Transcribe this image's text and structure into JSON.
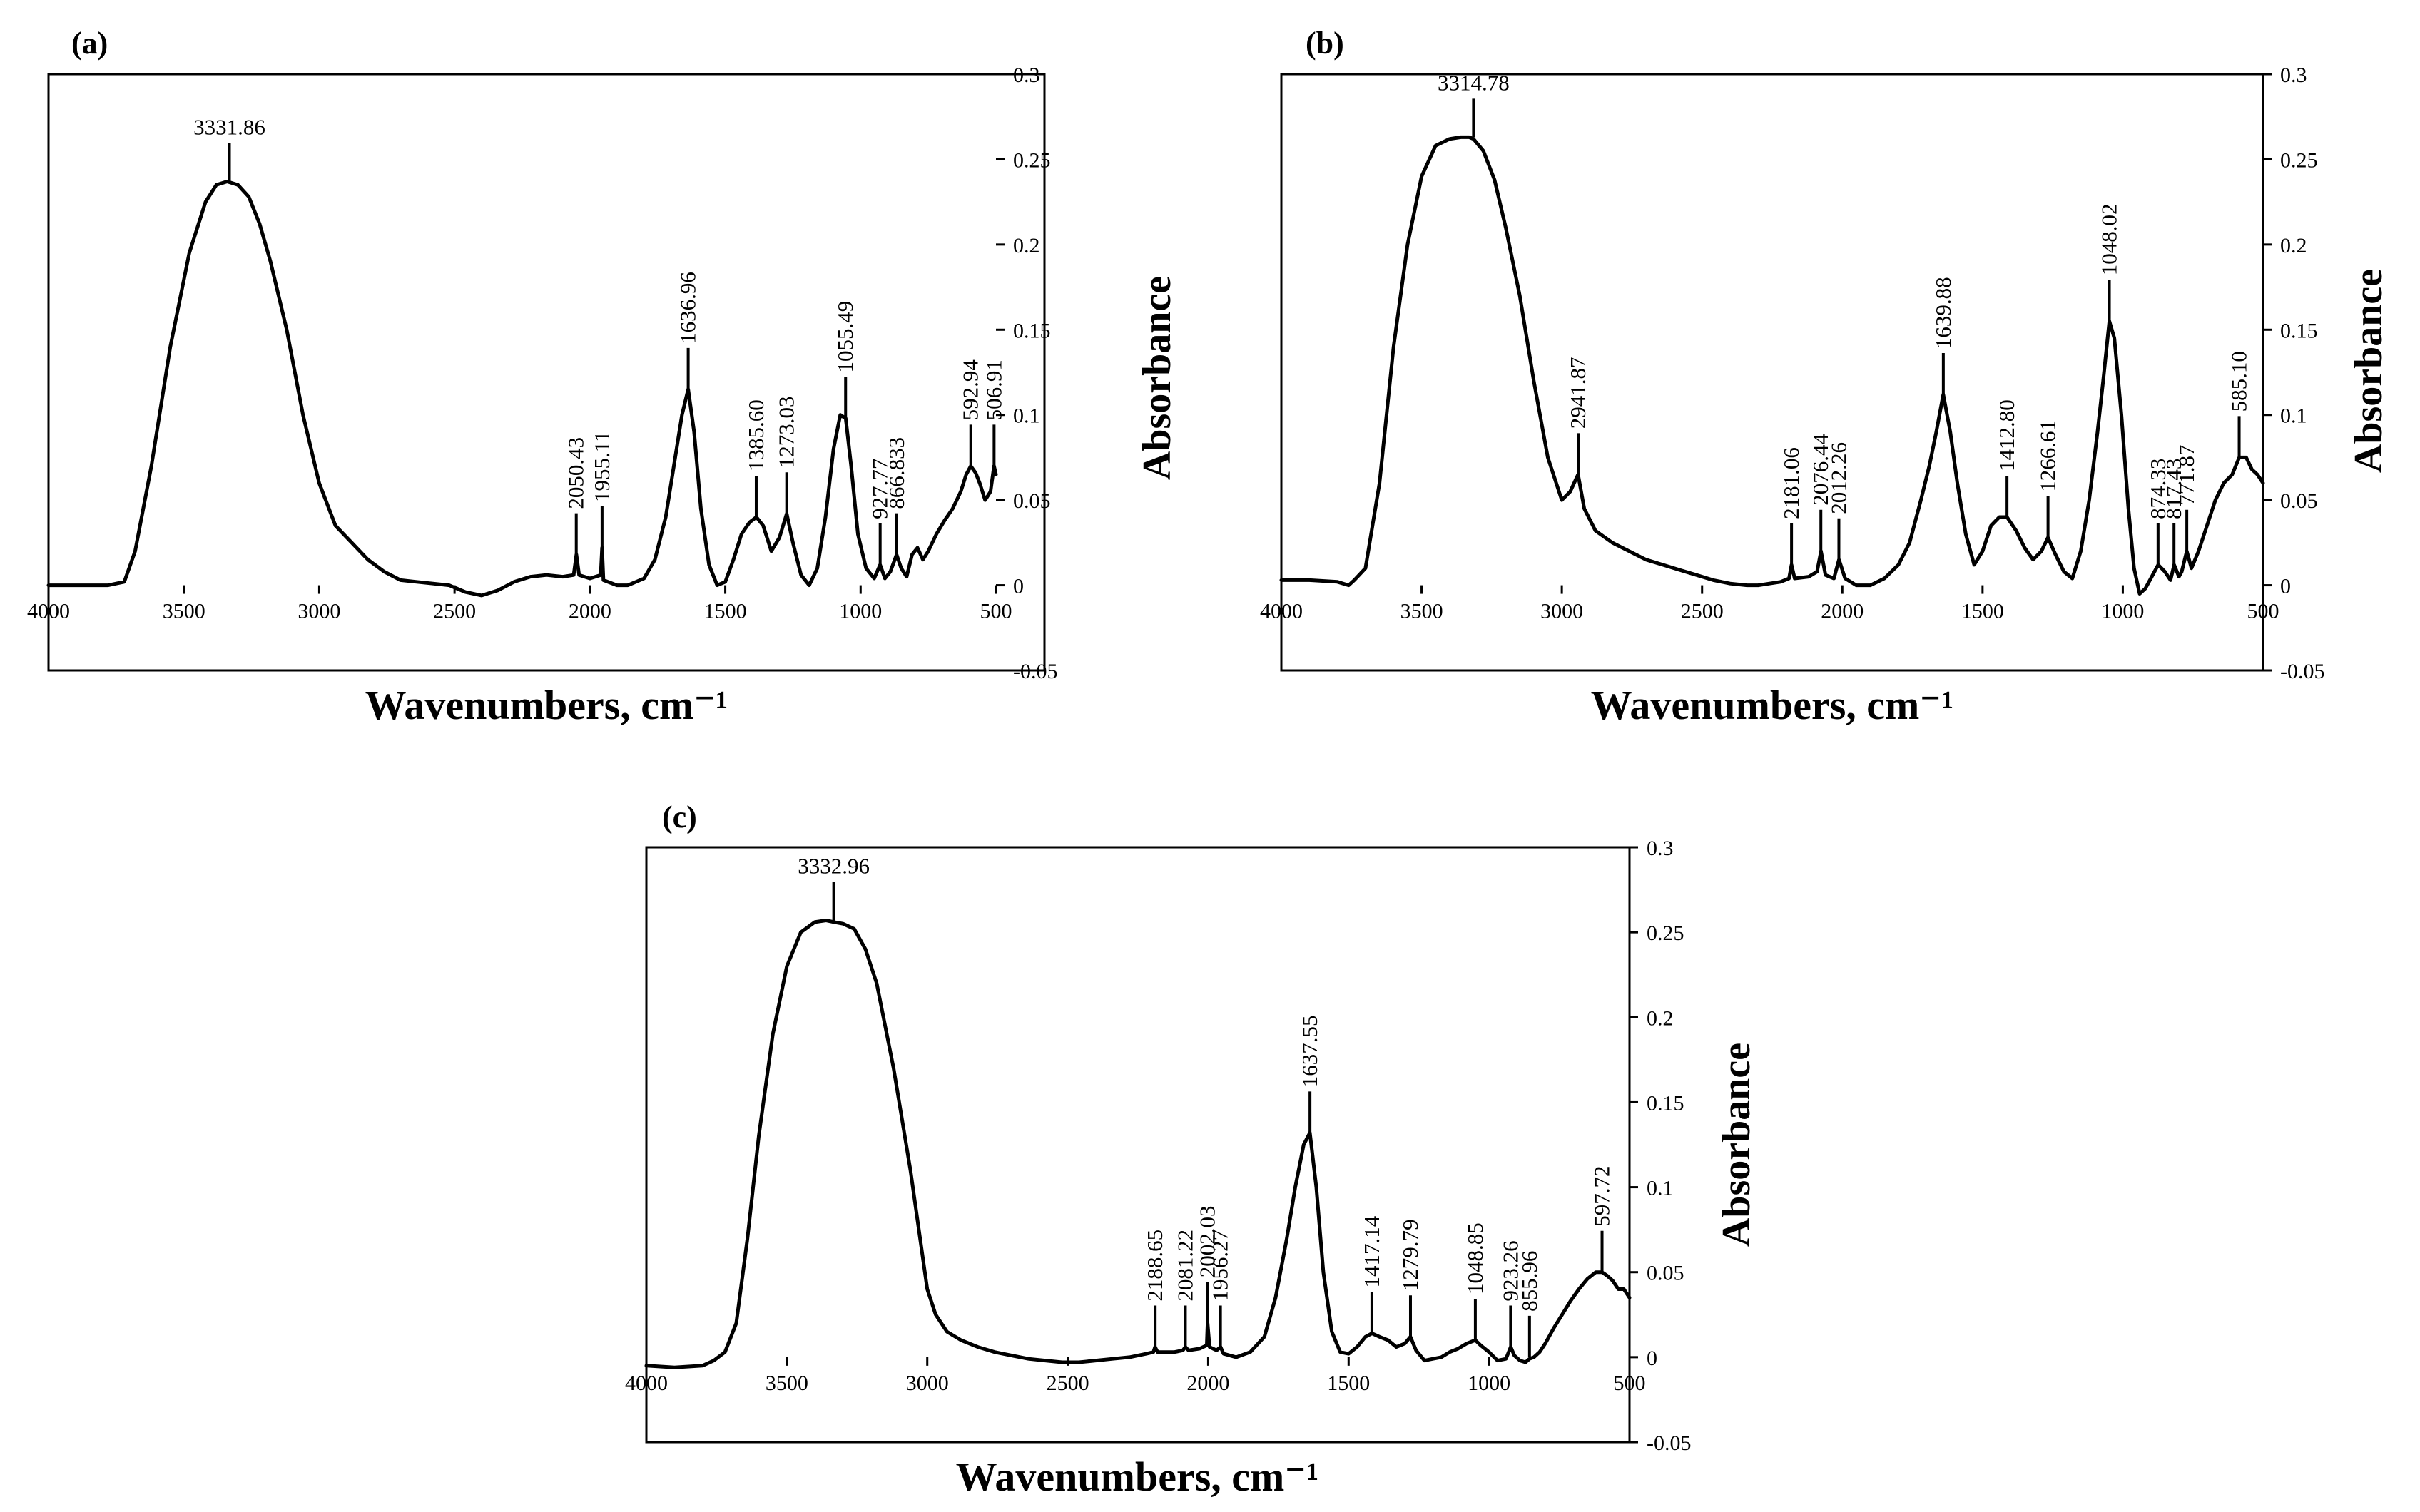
{
  "chart_data": [
    {
      "type": "line",
      "panel_label": "(a)",
      "xlabel": "Wavenumbers, cm⁻¹",
      "ylabel": "Absorbance",
      "xlim": [
        4000,
        500
      ],
      "ylim": [
        -0.05,
        0.3
      ],
      "x_ticks": [
        "4000",
        "3500",
        "3000",
        "2500",
        "2000",
        "1500",
        "1000",
        "500"
      ],
      "y_ticks": [
        "0.3",
        "0.25",
        "0.2",
        "0.15",
        "0.1",
        "0.05",
        "0",
        "-0.05"
      ],
      "series": [
        {
          "name": "spectrum (a)",
          "x": [
            4000,
            3850,
            3780,
            3720,
            3680,
            3620,
            3550,
            3480,
            3420,
            3380,
            3340,
            3300,
            3260,
            3220,
            3180,
            3120,
            3060,
            3000,
            2940,
            2880,
            2820,
            2760,
            2700,
            2640,
            2580,
            2520,
            2460,
            2400,
            2340,
            2280,
            2220,
            2160,
            2100,
            2060,
            2050,
            2040,
            2000,
            1960,
            1955,
            1950,
            1900,
            1860,
            1800,
            1760,
            1720,
            1690,
            1660,
            1637,
            1615,
            1590,
            1560,
            1530,
            1500,
            1470,
            1440,
            1410,
            1385,
            1360,
            1330,
            1300,
            1273,
            1250,
            1220,
            1190,
            1160,
            1130,
            1100,
            1075,
            1055,
            1035,
            1010,
            980,
            950,
            928,
            910,
            890,
            867,
            850,
            830,
            810,
            790,
            770,
            750,
            720,
            690,
            660,
            630,
            610,
            593,
            575,
            560,
            540,
            520,
            507,
            500
          ],
          "y": [
            0,
            0,
            0,
            0.002,
            0.02,
            0.07,
            0.14,
            0.195,
            0.225,
            0.235,
            0.237,
            0.235,
            0.228,
            0.212,
            0.19,
            0.15,
            0.1,
            0.06,
            0.035,
            0.025,
            0.015,
            0.008,
            0.003,
            0.002,
            0.001,
            0,
            -0.004,
            -0.006,
            -0.003,
            0.002,
            0.005,
            0.006,
            0.005,
            0.006,
            0.018,
            0.006,
            0.004,
            0.006,
            0.022,
            0.003,
            0,
            0,
            0.004,
            0.015,
            0.04,
            0.07,
            0.1,
            0.115,
            0.09,
            0.045,
            0.012,
            0,
            0.002,
            0.015,
            0.03,
            0.037,
            0.04,
            0.035,
            0.02,
            0.028,
            0.042,
            0.025,
            0.006,
            0,
            0.01,
            0.04,
            0.08,
            0.1,
            0.098,
            0.07,
            0.03,
            0.01,
            0.004,
            0.012,
            0.004,
            0.008,
            0.018,
            0.01,
            0.005,
            0.018,
            0.022,
            0.015,
            0.02,
            0.03,
            0.038,
            0.045,
            0.055,
            0.065,
            0.07,
            0.066,
            0.06,
            0.05,
            0.055,
            0.07,
            0.065
          ]
        }
      ],
      "peaks": [
        {
          "x": 3331.86,
          "y": 0.237,
          "label": "3331.86",
          "horizontal": true
        },
        {
          "x": 2050.43,
          "y": 0.018,
          "label": "2050.43"
        },
        {
          "x": 1955.11,
          "y": 0.022,
          "label": "1955.11"
        },
        {
          "x": 1636.96,
          "y": 0.115,
          "label": "1636.96"
        },
        {
          "x": 1385.6,
          "y": 0.04,
          "label": "1385.60"
        },
        {
          "x": 1273.03,
          "y": 0.042,
          "label": "1273.03"
        },
        {
          "x": 1055.49,
          "y": 0.098,
          "label": "1055.49"
        },
        {
          "x": 927.77,
          "y": 0.012,
          "label": "927.77"
        },
        {
          "x": 866.833,
          "y": 0.018,
          "label": "866.833"
        },
        {
          "x": 592.94,
          "y": 0.07,
          "label": "592.94"
        },
        {
          "x": 506.91,
          "y": 0.07,
          "label": "506.91"
        }
      ]
    },
    {
      "type": "line",
      "panel_label": "(b)",
      "xlabel": "Wavenumbers,  cm⁻¹",
      "ylabel": "Absorbance",
      "xlim": [
        4000,
        500
      ],
      "ylim": [
        -0.05,
        0.3
      ],
      "x_ticks": [
        "4000",
        "3500",
        "3000",
        "2500",
        "2000",
        "1500",
        "1000",
        "500"
      ],
      "y_ticks": [
        "0.3",
        "0.25",
        "0.2",
        "0.15",
        "0.1",
        "0.05",
        "0",
        "-0.05"
      ],
      "series": [
        {
          "name": "spectrum (b)",
          "x": [
            4000,
            3900,
            3800,
            3760,
            3740,
            3700,
            3650,
            3600,
            3550,
            3500,
            3450,
            3400,
            3360,
            3330,
            3315,
            3280,
            3240,
            3200,
            3150,
            3100,
            3050,
            3000,
            2970,
            2942,
            2920,
            2880,
            2820,
            2760,
            2700,
            2640,
            2580,
            2520,
            2460,
            2400,
            2340,
            2300,
            2260,
            2220,
            2190,
            2181,
            2170,
            2120,
            2090,
            2076,
            2060,
            2030,
            2012,
            1990,
            1950,
            1900,
            1850,
            1800,
            1760,
            1720,
            1690,
            1665,
            1640,
            1615,
            1590,
            1560,
            1530,
            1500,
            1470,
            1440,
            1413,
            1380,
            1350,
            1320,
            1290,
            1267,
            1240,
            1210,
            1180,
            1150,
            1120,
            1090,
            1070,
            1048,
            1030,
            1005,
            980,
            960,
            940,
            920,
            900,
            874,
            850,
            830,
            817,
            800,
            790,
            772,
            755,
            730,
            700,
            670,
            640,
            610,
            585,
            560,
            540,
            520,
            500
          ],
          "y": [
            0.003,
            0.003,
            0.002,
            0.0,
            0.003,
            0.01,
            0.06,
            0.14,
            0.2,
            0.24,
            0.258,
            0.262,
            0.263,
            0.263,
            0.262,
            0.255,
            0.238,
            0.21,
            0.17,
            0.12,
            0.075,
            0.05,
            0.055,
            0.065,
            0.045,
            0.032,
            0.025,
            0.02,
            0.015,
            0.012,
            0.009,
            0.006,
            0.003,
            0.001,
            0.0,
            0.0,
            0.001,
            0.002,
            0.004,
            0.012,
            0.004,
            0.005,
            0.008,
            0.02,
            0.006,
            0.004,
            0.015,
            0.004,
            0.0,
            0.0,
            0.004,
            0.012,
            0.025,
            0.05,
            0.07,
            0.09,
            0.112,
            0.09,
            0.06,
            0.03,
            0.012,
            0.02,
            0.035,
            0.04,
            0.04,
            0.032,
            0.022,
            0.015,
            0.02,
            0.028,
            0.018,
            0.008,
            0.004,
            0.02,
            0.05,
            0.09,
            0.12,
            0.155,
            0.145,
            0.1,
            0.045,
            0.01,
            -0.005,
            -0.002,
            0.004,
            0.012,
            0.008,
            0.003,
            0.012,
            0.005,
            0.008,
            0.02,
            0.01,
            0.02,
            0.035,
            0.05,
            0.06,
            0.065,
            0.075,
            0.075,
            0.068,
            0.065,
            0.06
          ]
        }
      ],
      "peaks": [
        {
          "x": 3314.78,
          "y": 0.263,
          "label": "3314.78",
          "horizontal": true
        },
        {
          "x": 2941.87,
          "y": 0.065,
          "label": "2941.87"
        },
        {
          "x": 2181.06,
          "y": 0.012,
          "label": "2181.06"
        },
        {
          "x": 2076.44,
          "y": 0.02,
          "label": "2076.44"
        },
        {
          "x": 2012.26,
          "y": 0.015,
          "label": "2012.26"
        },
        {
          "x": 1639.88,
          "y": 0.112,
          "label": "1639.88"
        },
        {
          "x": 1412.8,
          "y": 0.04,
          "label": "1412.80"
        },
        {
          "x": 1266.61,
          "y": 0.028,
          "label": "1266.61"
        },
        {
          "x": 1048.02,
          "y": 0.155,
          "label": "1048.02"
        },
        {
          "x": 874.33,
          "y": 0.012,
          "label": "874.33"
        },
        {
          "x": 817.43,
          "y": 0.012,
          "label": "817.43"
        },
        {
          "x": 771.87,
          "y": 0.02,
          "label": "771.87"
        },
        {
          "x": 585.1,
          "y": 0.075,
          "label": "585.10"
        }
      ]
    },
    {
      "type": "line",
      "panel_label": "(c)",
      "xlabel": "Wavenumbers, cm⁻¹",
      "ylabel": "Absorbance",
      "xlim": [
        4000,
        500
      ],
      "ylim": [
        -0.05,
        0.3
      ],
      "x_ticks": [
        "4000",
        "3500",
        "3000",
        "2500",
        "2000",
        "1500",
        "1000",
        "500"
      ],
      "y_ticks": [
        "0.3",
        "0.25",
        "0.2",
        "0.15",
        "0.1",
        "0.05",
        "0",
        "-0.05"
      ],
      "series": [
        {
          "name": "spectrum (c)",
          "x": [
            4000,
            3900,
            3800,
            3760,
            3720,
            3680,
            3640,
            3600,
            3550,
            3500,
            3450,
            3400,
            3360,
            3333,
            3300,
            3260,
            3220,
            3180,
            3120,
            3060,
            3000,
            2970,
            2930,
            2880,
            2820,
            2760,
            2700,
            2640,
            2580,
            2520,
            2460,
            2400,
            2340,
            2280,
            2220,
            2195,
            2189,
            2180,
            2120,
            2090,
            2081,
            2070,
            2030,
            2005,
            2002,
            1995,
            1970,
            1956,
            1945,
            1900,
            1850,
            1800,
            1760,
            1720,
            1690,
            1660,
            1638,
            1615,
            1590,
            1560,
            1530,
            1500,
            1470,
            1440,
            1417,
            1390,
            1360,
            1330,
            1300,
            1280,
            1260,
            1230,
            1200,
            1170,
            1140,
            1110,
            1080,
            1049,
            1030,
            1000,
            970,
            940,
            923,
            910,
            890,
            870,
            856,
            840,
            820,
            800,
            770,
            740,
            710,
            680,
            650,
            620,
            598,
            580,
            560,
            540,
            520,
            500
          ],
          "y": [
            -0.005,
            -0.006,
            -0.005,
            -0.002,
            0.003,
            0.02,
            0.07,
            0.13,
            0.19,
            0.23,
            0.25,
            0.256,
            0.257,
            0.256,
            0.255,
            0.252,
            0.24,
            0.22,
            0.17,
            0.11,
            0.04,
            0.025,
            0.015,
            0.01,
            0.006,
            0.003,
            0.001,
            -0.001,
            -0.002,
            -0.003,
            -0.003,
            -0.002,
            -0.001,
            0.0,
            0.002,
            0.003,
            0.006,
            0.003,
            0.003,
            0.004,
            0.006,
            0.004,
            0.005,
            0.007,
            0.02,
            0.006,
            0.004,
            0.006,
            0.002,
            0.0,
            0.003,
            0.012,
            0.035,
            0.07,
            0.1,
            0.125,
            0.132,
            0.1,
            0.05,
            0.015,
            0.003,
            0.002,
            0.006,
            0.012,
            0.014,
            0.012,
            0.01,
            0.006,
            0.008,
            0.012,
            0.004,
            -0.002,
            -0.001,
            0.0,
            0.003,
            0.005,
            0.008,
            0.01,
            0.007,
            0.003,
            -0.002,
            -0.001,
            0.006,
            0.001,
            -0.002,
            -0.003,
            -0.001,
            0.0,
            0.003,
            0.008,
            0.017,
            0.025,
            0.033,
            0.04,
            0.046,
            0.05,
            0.05,
            0.048,
            0.045,
            0.04,
            0.04,
            0.035
          ]
        }
      ],
      "peaks": [
        {
          "x": 3332.96,
          "y": 0.257,
          "label": "3332.96",
          "horizontal": true
        },
        {
          "x": 2188.65,
          "y": 0.006,
          "label": "2188.65"
        },
        {
          "x": 2081.22,
          "y": 0.006,
          "label": "2081.22"
        },
        {
          "x": 2002.03,
          "y": 0.02,
          "label": "2002.03"
        },
        {
          "x": 1956.27,
          "y": 0.006,
          "label": "1956.27"
        },
        {
          "x": 1637.55,
          "y": 0.132,
          "label": "1637.55"
        },
        {
          "x": 1417.14,
          "y": 0.014,
          "label": "1417.14"
        },
        {
          "x": 1279.79,
          "y": 0.012,
          "label": "1279.79"
        },
        {
          "x": 1048.85,
          "y": 0.01,
          "label": "1048.85"
        },
        {
          "x": 923.26,
          "y": 0.006,
          "label": "923.26"
        },
        {
          "x": 855.96,
          "y": 0.0,
          "label": "855.96"
        },
        {
          "x": 597.72,
          "y": 0.05,
          "label": "597.72"
        }
      ]
    }
  ]
}
